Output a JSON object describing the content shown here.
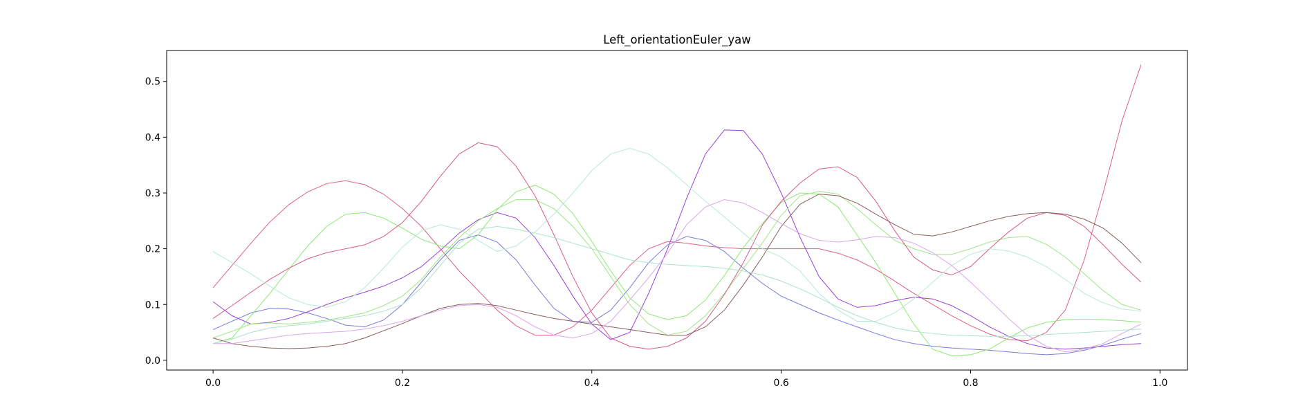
{
  "chart_data": {
    "type": "line",
    "title": "Left_orientationEuler_yaw",
    "xlabel": "",
    "ylabel": "",
    "xlim": [
      -0.049,
      1.029
    ],
    "ylim": [
      -0.0175,
      0.5555
    ],
    "xticks": [
      0.0,
      0.2,
      0.4,
      0.6,
      0.8,
      1.0
    ],
    "xtick_labels": [
      "0.0",
      "0.2",
      "0.4",
      "0.6",
      "0.8",
      "1.0"
    ],
    "yticks": [
      0.0,
      0.1,
      0.2,
      0.3,
      0.4,
      0.5
    ],
    "ytick_labels": [
      "0.0",
      "0.1",
      "0.2",
      "0.3",
      "0.4",
      "0.5"
    ],
    "grid": false,
    "legend": "none",
    "x": [
      0.0,
      0.02,
      0.04,
      0.06,
      0.08,
      0.1,
      0.12,
      0.14,
      0.16,
      0.18,
      0.2,
      0.22,
      0.24,
      0.26,
      0.28,
      0.3,
      0.32,
      0.34,
      0.36,
      0.38,
      0.4,
      0.42,
      0.44,
      0.46,
      0.48,
      0.5,
      0.52,
      0.54,
      0.56,
      0.58,
      0.6,
      0.62,
      0.64,
      0.66,
      0.68,
      0.7,
      0.72,
      0.74,
      0.76,
      0.78,
      0.8,
      0.82,
      0.84,
      0.86,
      0.88,
      0.9,
      0.92,
      0.94,
      0.96,
      0.98
    ],
    "series": [
      {
        "color": "#e0607e",
        "values": [
          0.13,
          0.17,
          0.21,
          0.248,
          0.279,
          0.302,
          0.317,
          0.322,
          0.315,
          0.298,
          0.272,
          0.24,
          0.2,
          0.16,
          0.125,
          0.09,
          0.062,
          0.045,
          0.045,
          0.06,
          0.09,
          0.13,
          0.17,
          0.2,
          0.213,
          0.21,
          0.205,
          0.202,
          0.2,
          0.2,
          0.2,
          0.2,
          0.2,
          0.192,
          0.18,
          0.163,
          0.142,
          0.12,
          0.1,
          0.08,
          0.062,
          0.047,
          0.037,
          0.035,
          0.05,
          0.09,
          0.18,
          0.3,
          0.43,
          0.53
        ]
      },
      {
        "color": "#9a40d8",
        "values": [
          0.105,
          0.08,
          0.065,
          0.068,
          0.075,
          0.087,
          0.1,
          0.112,
          0.122,
          0.133,
          0.148,
          0.168,
          0.197,
          0.228,
          0.252,
          0.265,
          0.255,
          0.22,
          0.17,
          0.115,
          0.065,
          0.037,
          0.05,
          0.12,
          0.2,
          0.29,
          0.37,
          0.413,
          0.412,
          0.37,
          0.3,
          0.22,
          0.15,
          0.11,
          0.095,
          0.098,
          0.107,
          0.113,
          0.11,
          0.098,
          0.08,
          0.06,
          0.043,
          0.03,
          0.022,
          0.02,
          0.022,
          0.025,
          0.028,
          0.03
        ]
      },
      {
        "color": "#7a7ade",
        "values": [
          0.055,
          0.07,
          0.085,
          0.093,
          0.092,
          0.085,
          0.075,
          0.063,
          0.06,
          0.072,
          0.1,
          0.14,
          0.18,
          0.215,
          0.225,
          0.212,
          0.18,
          0.135,
          0.093,
          0.07,
          0.068,
          0.09,
          0.13,
          0.175,
          0.207,
          0.222,
          0.215,
          0.195,
          0.165,
          0.138,
          0.115,
          0.1,
          0.085,
          0.072,
          0.06,
          0.048,
          0.037,
          0.03,
          0.025,
          0.022,
          0.02,
          0.018,
          0.015,
          0.012,
          0.01,
          0.012,
          0.018,
          0.027,
          0.038,
          0.048
        ]
      },
      {
        "color": "#8aea72",
        "values": [
          0.03,
          0.04,
          0.08,
          0.12,
          0.163,
          0.205,
          0.24,
          0.262,
          0.265,
          0.255,
          0.237,
          0.217,
          0.205,
          0.2,
          0.225,
          0.27,
          0.302,
          0.314,
          0.298,
          0.263,
          0.213,
          0.16,
          0.112,
          0.083,
          0.073,
          0.08,
          0.108,
          0.152,
          0.202,
          0.245,
          0.283,
          0.3,
          0.298,
          0.275,
          0.225,
          0.175,
          0.12,
          0.065,
          0.02,
          0.008,
          0.01,
          0.02,
          0.04,
          0.058,
          0.068,
          0.073,
          0.074,
          0.073,
          0.071,
          0.068
        ]
      },
      {
        "color": "#9ee685",
        "values": [
          0.04,
          0.052,
          0.065,
          0.067,
          0.065,
          0.068,
          0.072,
          0.078,
          0.085,
          0.098,
          0.115,
          0.145,
          0.185,
          0.22,
          0.25,
          0.272,
          0.288,
          0.288,
          0.272,
          0.24,
          0.2,
          0.15,
          0.1,
          0.065,
          0.045,
          0.052,
          0.08,
          0.12,
          0.165,
          0.21,
          0.26,
          0.295,
          0.303,
          0.298,
          0.272,
          0.243,
          0.215,
          0.2,
          0.19,
          0.19,
          0.2,
          0.212,
          0.22,
          0.222,
          0.208,
          0.185,
          0.155,
          0.125,
          0.1,
          0.09
        ]
      },
      {
        "color": "#d65a86",
        "values": [
          0.075,
          0.098,
          0.122,
          0.145,
          0.165,
          0.182,
          0.193,
          0.2,
          0.207,
          0.222,
          0.247,
          0.285,
          0.33,
          0.37,
          0.39,
          0.383,
          0.348,
          0.295,
          0.225,
          0.15,
          0.085,
          0.04,
          0.025,
          0.02,
          0.025,
          0.04,
          0.07,
          0.118,
          0.175,
          0.242,
          0.285,
          0.318,
          0.343,
          0.347,
          0.328,
          0.285,
          0.232,
          0.185,
          0.162,
          0.153,
          0.168,
          0.2,
          0.23,
          0.255,
          0.265,
          0.26,
          0.24,
          0.207,
          0.172,
          0.14
        ]
      },
      {
        "color": "#8a5c5a",
        "values": [
          0.04,
          0.03,
          0.025,
          0.022,
          0.021,
          0.022,
          0.025,
          0.03,
          0.04,
          0.053,
          0.066,
          0.08,
          0.093,
          0.1,
          0.102,
          0.098,
          0.09,
          0.082,
          0.075,
          0.07,
          0.065,
          0.06,
          0.055,
          0.05,
          0.045,
          0.045,
          0.06,
          0.09,
          0.135,
          0.185,
          0.24,
          0.28,
          0.298,
          0.295,
          0.282,
          0.262,
          0.243,
          0.226,
          0.223,
          0.23,
          0.24,
          0.25,
          0.258,
          0.263,
          0.265,
          0.262,
          0.253,
          0.237,
          0.21,
          0.175
        ]
      },
      {
        "color": "#b7ead3",
        "values": [
          0.195,
          0.175,
          0.155,
          0.133,
          0.112,
          0.1,
          0.095,
          0.105,
          0.13,
          0.165,
          0.203,
          0.232,
          0.243,
          0.235,
          0.215,
          0.195,
          0.205,
          0.23,
          0.262,
          0.3,
          0.34,
          0.37,
          0.38,
          0.37,
          0.345,
          0.315,
          0.285,
          0.257,
          0.228,
          0.2,
          0.185,
          0.16,
          0.12,
          0.09,
          0.07,
          0.07,
          0.085,
          0.11,
          0.14,
          0.17,
          0.19,
          0.2,
          0.196,
          0.185,
          0.168,
          0.145,
          0.12,
          0.103,
          0.092,
          0.088
        ]
      },
      {
        "color": "#d8a6ec",
        "values": [
          0.03,
          0.03,
          0.035,
          0.04,
          0.045,
          0.048,
          0.05,
          0.052,
          0.056,
          0.062,
          0.07,
          0.08,
          0.09,
          0.098,
          0.1,
          0.095,
          0.08,
          0.06,
          0.045,
          0.04,
          0.048,
          0.07,
          0.108,
          0.148,
          0.192,
          0.243,
          0.275,
          0.288,
          0.282,
          0.265,
          0.245,
          0.227,
          0.215,
          0.212,
          0.216,
          0.222,
          0.22,
          0.21,
          0.193,
          0.17,
          0.14,
          0.108,
          0.075,
          0.045,
          0.025,
          0.015,
          0.02,
          0.03,
          0.048,
          0.065
        ]
      },
      {
        "color": "#a8e3c8",
        "values": [
          0.03,
          0.038,
          0.05,
          0.058,
          0.062,
          0.065,
          0.07,
          0.075,
          0.08,
          0.088,
          0.1,
          0.13,
          0.17,
          0.21,
          0.235,
          0.24,
          0.235,
          0.228,
          0.22,
          0.21,
          0.2,
          0.19,
          0.18,
          0.175,
          0.172,
          0.17,
          0.168,
          0.165,
          0.16,
          0.153,
          0.142,
          0.128,
          0.112,
          0.095,
          0.08,
          0.068,
          0.058,
          0.052,
          0.048,
          0.045,
          0.044,
          0.043,
          0.043,
          0.044,
          0.046,
          0.048,
          0.05,
          0.052,
          0.054,
          0.056
        ]
      }
    ]
  }
}
